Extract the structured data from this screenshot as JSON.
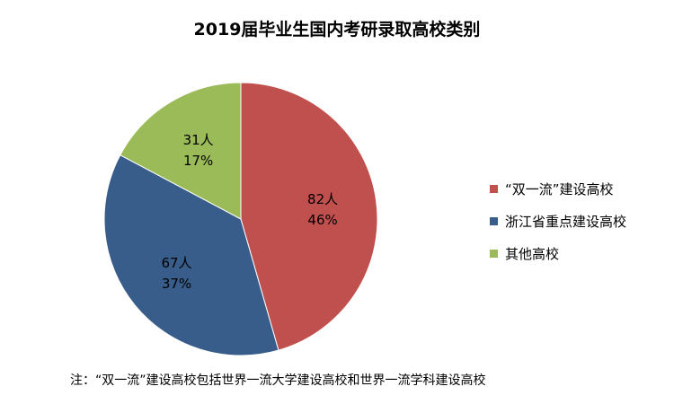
{
  "chart_data": {
    "type": "pie",
    "title": "2019届毕业生国内考研录取高校类别",
    "slices": [
      {
        "name": "“双一流”建设高校",
        "value": 82,
        "value_label": "82人",
        "percent_label": "46%",
        "color": "#C0504D"
      },
      {
        "name": "浙江省重点建设高校",
        "value": 67,
        "value_label": "67人",
        "percent_label": "37%",
        "color": "#385D8A"
      },
      {
        "name": "其他高校",
        "value": 31,
        "value_label": "31人",
        "percent_label": "17%",
        "color": "#9BBB59"
      }
    ],
    "legend_position": "right",
    "note": "注：“双一流”建设高校包括世界一流大学建设高校和世界一流学科建设高校"
  }
}
